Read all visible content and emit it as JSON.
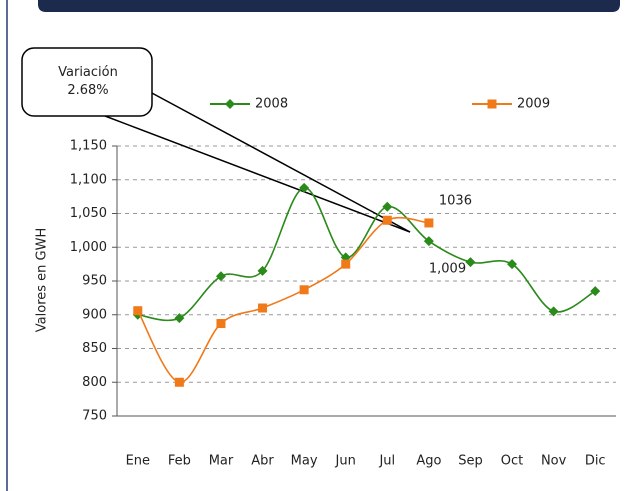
{
  "chart_data": {
    "type": "line",
    "annotation": "Variación\n2.68%",
    "ylabel": "Valores en GWH",
    "categories": [
      "Ene",
      "Feb",
      "Mar",
      "Abr",
      "May",
      "Jun",
      "Jul",
      "Ago",
      "Sep",
      "Oct",
      "Nov",
      "Dic"
    ],
    "series": [
      {
        "name": "2008",
        "color": "#2a8a1a",
        "values": [
          900,
          895,
          957,
          965,
          1088,
          985,
          1060,
          1009,
          978,
          975,
          905,
          935
        ],
        "value_labels": [
          null,
          null,
          null,
          null,
          null,
          null,
          null,
          "1,009",
          null,
          null,
          null,
          null
        ]
      },
      {
        "name": "2009",
        "color": "#f07a1a",
        "values": [
          906,
          800,
          887,
          910,
          937,
          975,
          1040,
          1036,
          null,
          null,
          null,
          null
        ],
        "value_labels": [
          null,
          null,
          null,
          null,
          null,
          null,
          null,
          "1036",
          null,
          null,
          null,
          null
        ]
      }
    ],
    "ylim": [
      750,
      1150
    ],
    "yticks": [
      750,
      800,
      850,
      900,
      950,
      {
        "value": 1000,
        "label": "1,000"
      },
      {
        "value": 1050,
        "label": "1,050"
      },
      {
        "value": 1100,
        "label": "1,100"
      },
      {
        "value": 1150,
        "label": "1,150"
      }
    ],
    "grid": true,
    "legend": "top"
  }
}
